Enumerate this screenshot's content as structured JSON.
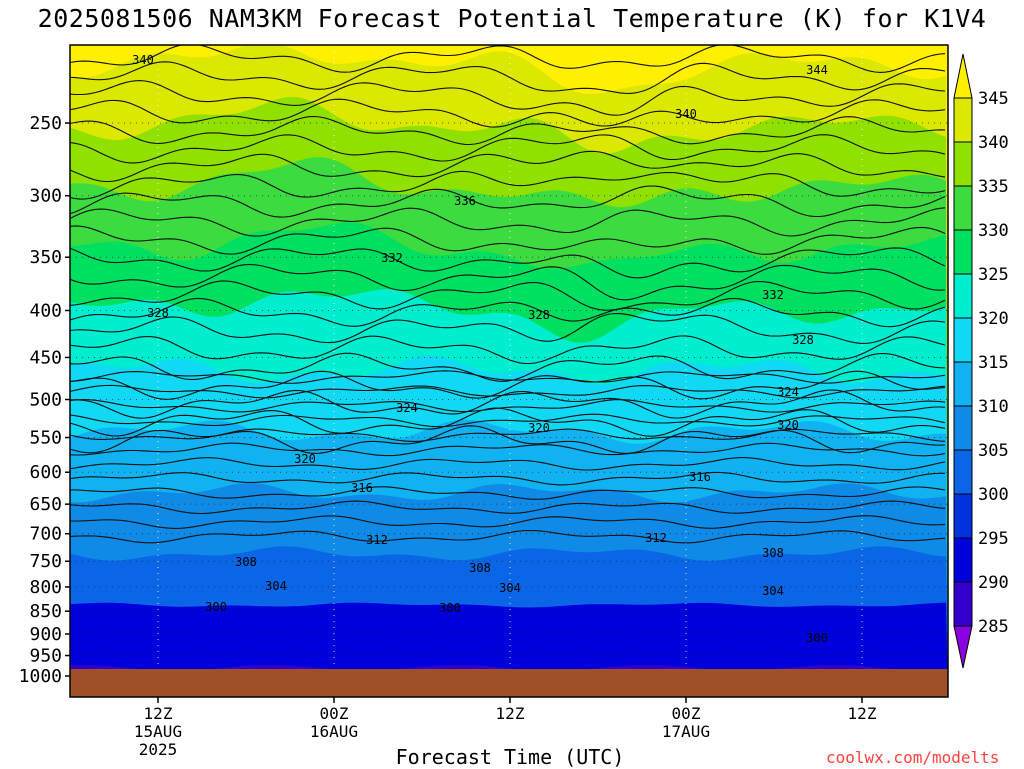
{
  "title": "2025081506 NAM3KM Forecast Potential Temperature (K) for K1V4",
  "xlabel": "Forecast Time (UTC)",
  "credit": "coolwx.com/modelts",
  "chart_data": {
    "type": "heatmap",
    "title": "2025081506 NAM3KM Forecast Potential Temperature (K) for K1V4",
    "xlabel": "Forecast Time (UTC)",
    "ylabel": "",
    "y_axis": {
      "scale": "log",
      "inverted": true,
      "range": [
        200,
        1000
      ],
      "ticks": [
        250,
        300,
        350,
        400,
        450,
        500,
        550,
        600,
        650,
        700,
        750,
        800,
        850,
        900,
        950,
        1000
      ]
    },
    "x_axis": {
      "range": [
        "2025-08-15 06Z",
        "2025-08-17 18Z"
      ],
      "ticks": [
        {
          "label": "12Z",
          "date": "15AUG",
          "year": "2025",
          "time": "2025-08-15 12Z"
        },
        {
          "label": "00Z",
          "date": "16AUG",
          "year": "",
          "time": "2025-08-16 00Z"
        },
        {
          "label": "12Z",
          "date": "",
          "year": "",
          "time": "2025-08-16 12Z"
        },
        {
          "label": "00Z",
          "date": "17AUG",
          "year": "",
          "time": "2025-08-17 00Z"
        },
        {
          "label": "12Z",
          "date": "",
          "year": "",
          "time": "2025-08-17 12Z"
        }
      ]
    },
    "grid": true,
    "colorbar": {
      "placement": "right",
      "labels": [
        285,
        290,
        295,
        300,
        305,
        310,
        315,
        320,
        325,
        330,
        335,
        340,
        345
      ],
      "colors": [
        "#8a00e0",
        "#3300cc",
        "#0000dd",
        "#0033dd",
        "#0a66e6",
        "#0f8ae6",
        "#10b2f2",
        "#10d8f5",
        "#00eed0",
        "#00e060",
        "#3cdc40",
        "#90e000",
        "#dde800",
        "#fff000"
      ]
    },
    "ground_color": "#a05028",
    "contours": [
      {
        "label": "300",
        "label_positions": [
          [
            216,
            607
          ],
          [
            450,
            608
          ],
          [
            817,
            638
          ]
        ]
      },
      {
        "label": "304",
        "label_positions": [
          [
            276,
            586
          ],
          [
            510,
            588
          ],
          [
            773,
            591
          ]
        ]
      },
      {
        "label": "308",
        "label_positions": [
          [
            246,
            562
          ],
          [
            480,
            568
          ],
          [
            773,
            553
          ]
        ]
      },
      {
        "label": "312",
        "label_positions": [
          [
            377,
            540
          ],
          [
            656,
            538
          ]
        ]
      },
      {
        "label": "316",
        "label_positions": [
          [
            362,
            488
          ],
          [
            700,
            477
          ]
        ]
      },
      {
        "label": "320",
        "label_positions": [
          [
            305,
            459
          ],
          [
            539,
            428
          ],
          [
            788,
            425
          ]
        ]
      },
      {
        "label": "324",
        "label_positions": [
          [
            407,
            408
          ],
          [
            788,
            392
          ]
        ]
      },
      {
        "label": "328",
        "label_positions": [
          [
            158,
            313
          ],
          [
            539,
            315
          ],
          [
            803,
            340
          ]
        ]
      },
      {
        "label": "332",
        "label_positions": [
          [
            392,
            258
          ],
          [
            773,
            295
          ]
        ]
      },
      {
        "label": "336",
        "label_positions": [
          [
            465,
            201
          ]
        ]
      },
      {
        "label": "340",
        "label_positions": [
          [
            143,
            60
          ],
          [
            686,
            114
          ]
        ]
      },
      {
        "label": "344",
        "label_positions": [
          [
            817,
            70
          ]
        ]
      }
    ]
  }
}
